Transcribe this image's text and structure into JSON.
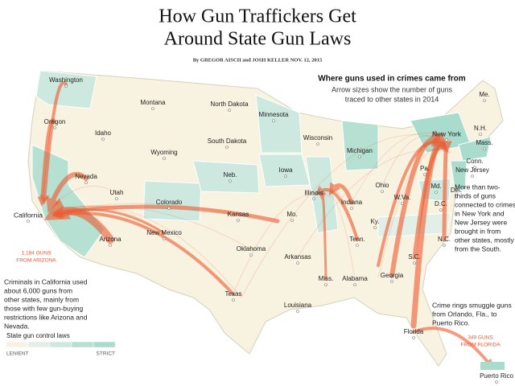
{
  "header": {
    "title_lines": [
      "How Gun Traffickers Get",
      "Around State Gun Laws"
    ],
    "byline": "By GREGOR AISCH and JOSH KELLER  NOV. 12, 2015"
  },
  "key": {
    "heading": "Where guns used in crimes came from",
    "subtitle_lines": [
      "Arrow sizes show the number of guns",
      "traced to other states in 2014"
    ]
  },
  "states": [
    "Washington",
    "Oregon",
    "Idaho",
    "Montana",
    "Wyoming",
    "Nevada",
    "Utah",
    "California",
    "Arizona",
    "Colorado",
    "New Mexico",
    "North Dakota",
    "South Dakota",
    "Neb.",
    "Kansas",
    "Oklahoma",
    "Texas",
    "Minnesota",
    "Iowa",
    "Mo.",
    "Arkansas",
    "Louisiana",
    "Wisconsin",
    "Illinois",
    "Miss.",
    "Tenn.",
    "Alabama",
    "Michigan",
    "Indiana",
    "Ky.",
    "Ohio",
    "Georgia",
    "Florida",
    "W.Va.",
    "Pa.",
    "New York",
    "New Jersey",
    "Conn.",
    "Mass.",
    "N.H.",
    "Me.",
    "Md.",
    "Del.",
    "D.C.",
    "N.C.",
    "S.C.",
    "Puerto Rico"
  ],
  "callouts": {
    "arizona": [
      "1,184 GUNS",
      "FROM ARIZONA"
    ],
    "florida": [
      "349 GUNS",
      "FROM FLORIDA"
    ]
  },
  "annotations": {
    "california": [
      "Criminals in California used",
      "about 6,000 guns from",
      "other states, mainly from",
      "those with few gun-buying",
      "restrictions like Arizona and",
      "Nevada."
    ],
    "new_york": [
      "More than two-",
      "thirds of guns",
      "connected to crimes",
      "in New York and",
      "New Jersey were",
      "brought in from",
      "other states, mostly",
      "from the South."
    ],
    "puerto_rico": [
      "Crime rings smuggle guns",
      "from Orlando, Fla., to",
      "Puerto Rico."
    ]
  },
  "legend": {
    "title": "State gun control laws",
    "low": "LENIENT",
    "high": "STRICT"
  }
}
